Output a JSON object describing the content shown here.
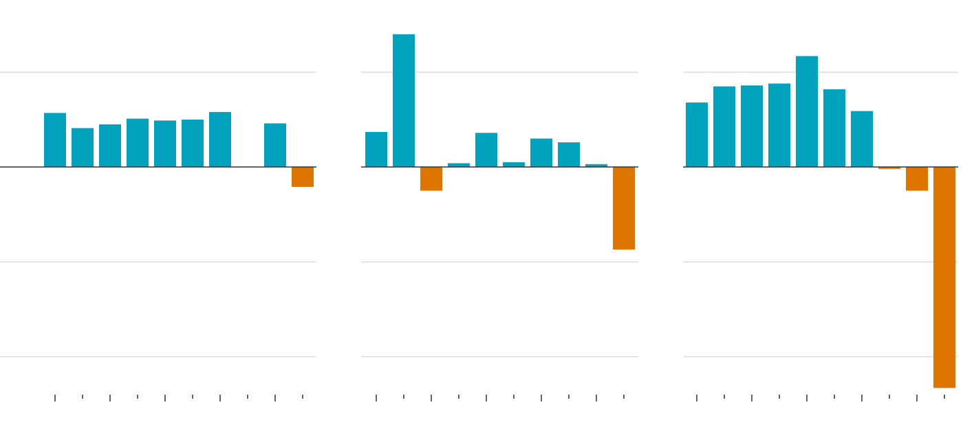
{
  "chart_data": [
    {
      "type": "bar",
      "categories": [
        null,
        null,
        null,
        null,
        null,
        null,
        null,
        null,
        null,
        null
      ],
      "values": [
        0.57,
        0.41,
        0.45,
        0.51,
        0.49,
        0.5,
        0.58,
        0.005,
        0.46,
        -0.21
      ],
      "positive_color": "#00a2bd",
      "negative_color": "#dd7500",
      "ylim": [
        -2.4,
        1.761
      ],
      "yticks": [
        -2,
        -1,
        0,
        1
      ],
      "grid": true
    },
    {
      "type": "bar",
      "categories": [
        null,
        null,
        null,
        null,
        null,
        null,
        null,
        null,
        null,
        null
      ],
      "values": [
        0.37,
        1.4,
        -0.25,
        0.04,
        0.36,
        0.05,
        0.3,
        0.26,
        0.03,
        -0.87
      ],
      "positive_color": "#00a2bd",
      "negative_color": "#dd7500",
      "ylim": [
        -2.4,
        1.761
      ],
      "yticks": [
        -2,
        -1,
        0,
        1
      ],
      "grid": true
    },
    {
      "type": "bar",
      "categories": [
        null,
        null,
        null,
        null,
        null,
        null,
        null,
        null,
        null,
        null
      ],
      "values": [
        0.68,
        0.85,
        0.86,
        0.88,
        1.17,
        0.82,
        0.59,
        -0.02,
        -0.25,
        -2.33
      ],
      "positive_color": "#00a2bd",
      "negative_color": "#dd7500",
      "ylim": [
        -2.4,
        1.761
      ],
      "yticks": [
        -2,
        -1,
        0,
        1
      ],
      "grid": true
    }
  ]
}
